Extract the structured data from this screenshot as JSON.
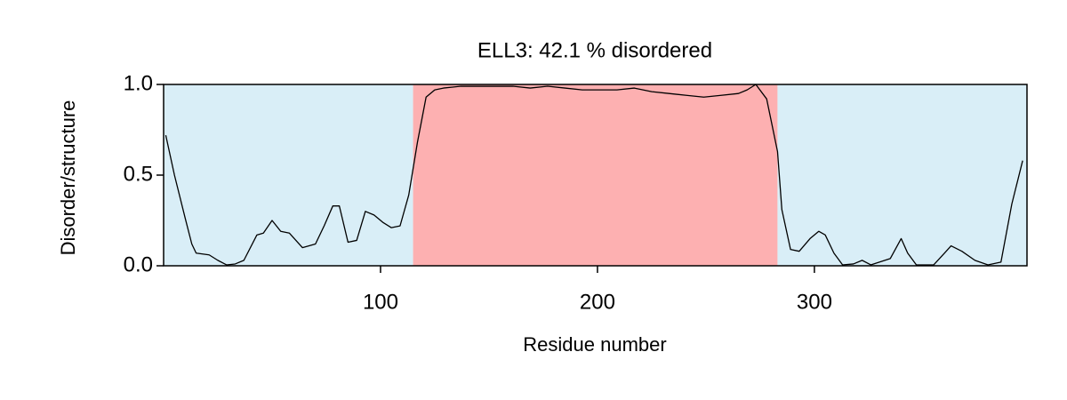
{
  "chart_data": {
    "type": "line",
    "title": "ELL3: 42.1 % disordered",
    "xlabel": "Residue number",
    "ylabel": "Disorder/structure",
    "xlim": [
      0,
      398
    ],
    "ylim": [
      0,
      1
    ],
    "xticks": [
      100,
      200,
      300
    ],
    "yticks": [
      {
        "value": 0,
        "label": "0.0"
      },
      0.5,
      {
        "value": 1,
        "label": "1.0"
      }
    ],
    "grid": false,
    "regions": [
      {
        "start": 0,
        "end": 115,
        "color": "#d9eef7"
      },
      {
        "start": 115,
        "end": 283,
        "color": "#fdb0b1"
      },
      {
        "start": 283,
        "end": 398,
        "color": "#d9eef7"
      }
    ],
    "series": [
      {
        "color": "#000000",
        "x": [
          1,
          5,
          10,
          13,
          15,
          21,
          25,
          29,
          33,
          37,
          43,
          46,
          50,
          54,
          58,
          64,
          70,
          74,
          78,
          81,
          85,
          89,
          93,
          97,
          101,
          105,
          109,
          113,
          117,
          121,
          125,
          129,
          137,
          145,
          153,
          161,
          169,
          177,
          185,
          193,
          201,
          209,
          217,
          225,
          233,
          241,
          249,
          257,
          265,
          269,
          273,
          278,
          283,
          285,
          289,
          293,
          298,
          302,
          305,
          309,
          313,
          318,
          322,
          326,
          335,
          340,
          343,
          347,
          355,
          360,
          363,
          368,
          374,
          380,
          386,
          391,
          396
        ],
        "values": [
          0.72,
          0.5,
          0.26,
          0.12,
          0.07,
          0.06,
          0.03,
          0.005,
          0.01,
          0.03,
          0.17,
          0.18,
          0.25,
          0.19,
          0.18,
          0.1,
          0.12,
          0.22,
          0.33,
          0.33,
          0.13,
          0.14,
          0.3,
          0.28,
          0.24,
          0.21,
          0.22,
          0.39,
          0.68,
          0.93,
          0.97,
          0.98,
          0.99,
          0.99,
          0.99,
          0.99,
          0.98,
          0.99,
          0.98,
          0.97,
          0.97,
          0.97,
          0.98,
          0.96,
          0.95,
          0.94,
          0.93,
          0.94,
          0.95,
          0.97,
          1.0,
          0.92,
          0.63,
          0.31,
          0.09,
          0.08,
          0.15,
          0.19,
          0.17,
          0.07,
          0.005,
          0.01,
          0.03,
          0.005,
          0.04,
          0.15,
          0.07,
          0.005,
          0.005,
          0.07,
          0.11,
          0.08,
          0.03,
          0.005,
          0.02,
          0.34,
          0.58
        ]
      }
    ]
  }
}
